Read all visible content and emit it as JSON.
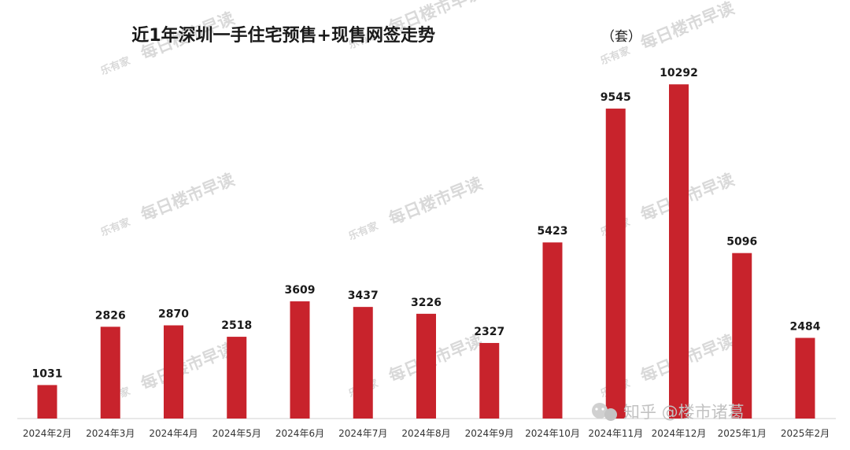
{
  "watermark": {
    "logo": "乐有家",
    "text": "每日楼市早读"
  },
  "credit": {
    "text": "知乎 @楼市诸葛"
  },
  "colors": {
    "bar": "#c8232c",
    "text": "#1a1a1a",
    "axis": "#d0d0d0",
    "watermark": "#d9d9d9"
  },
  "chart_data": {
    "type": "bar",
    "title": "近1年深圳一手住宅预售+现售网签走势",
    "unit": "（套）",
    "categories": [
      "2024年2月",
      "2024年3月",
      "2024年4月",
      "2024年5月",
      "2024年6月",
      "2024年7月",
      "2024年8月",
      "2024年9月",
      "2024年10月",
      "2024年11月",
      "2024年12月",
      "2025年1月",
      "2025年2月"
    ],
    "values": [
      1031,
      2826,
      2870,
      2518,
      3609,
      3437,
      3226,
      2327,
      5423,
      9545,
      10292,
      5096,
      2484
    ],
    "xlabel": "",
    "ylabel": "",
    "ylim": [
      0,
      11000
    ],
    "grid": false,
    "legend": "none",
    "data_labels": true
  }
}
